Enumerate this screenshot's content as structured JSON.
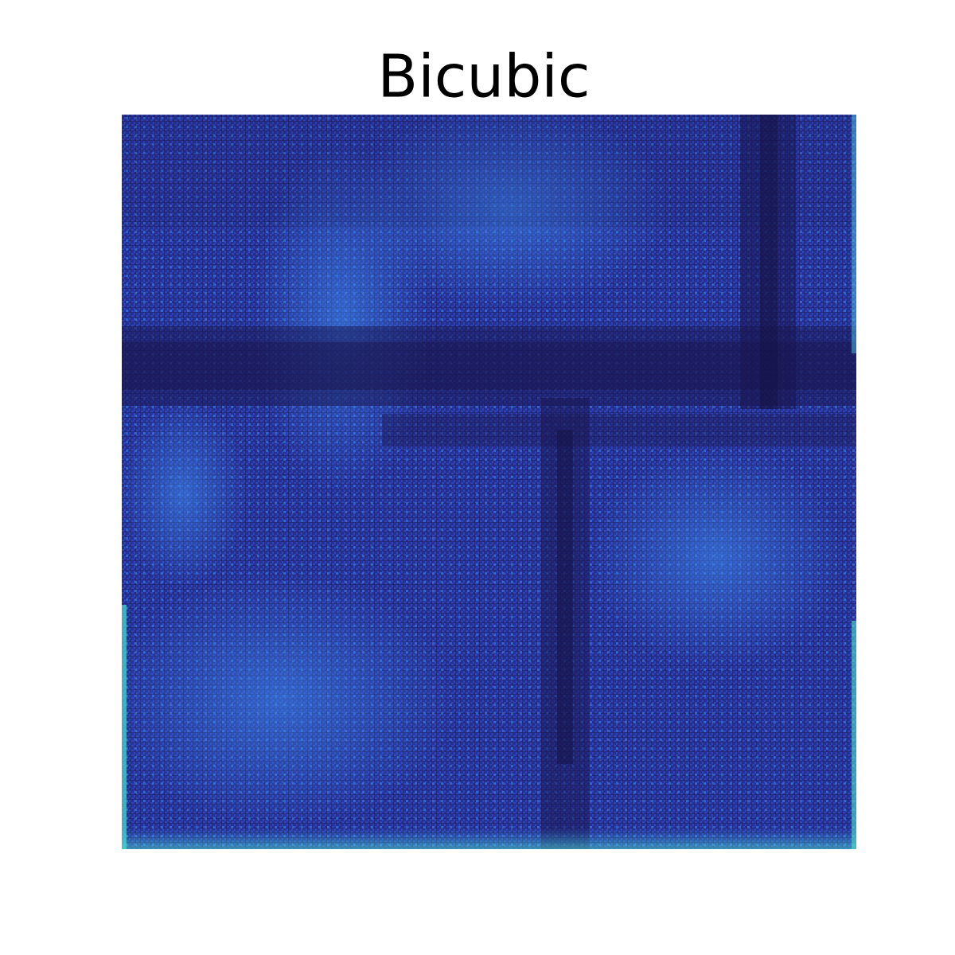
{
  "title": "Bicubic"
}
